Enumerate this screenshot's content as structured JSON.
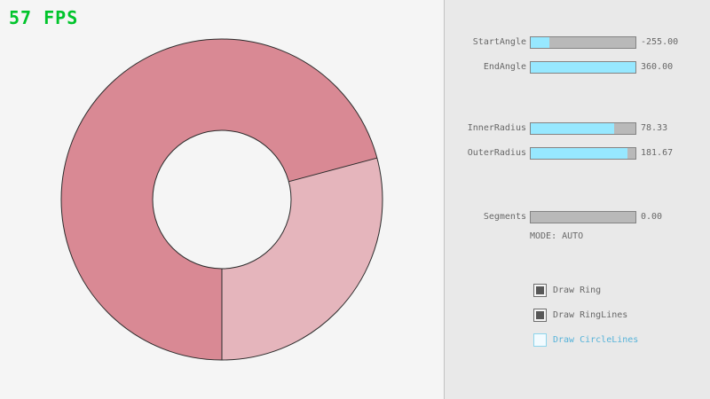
{
  "fps": {
    "text": "57 FPS",
    "color": "#00c42b"
  },
  "ring": {
    "body_color": "#d98994",
    "sector_color": "#e5b5bc",
    "outline_color": "#2b2b2b"
  },
  "controls": {
    "sliders": [
      {
        "label": "StartAngle",
        "value": "-255.00",
        "fill_pct": 18
      },
      {
        "label": "EndAngle",
        "value": "360.00",
        "fill_pct": 100
      },
      {
        "label": "InnerRadius",
        "value": "78.33",
        "fill_pct": 80
      },
      {
        "label": "OuterRadius",
        "value": "181.67",
        "fill_pct": 92
      },
      {
        "label": "Segments",
        "value": "0.00",
        "fill_pct": 0
      }
    ],
    "mode_text": "MODE: AUTO",
    "checkboxes": [
      {
        "label": "Draw Ring",
        "checked": true
      },
      {
        "label": "Draw RingLines",
        "checked": true
      },
      {
        "label": "Draw CircleLines",
        "checked": false
      }
    ],
    "colors": {
      "accent_fill": "#97e8ff",
      "track": "#b9b9b9",
      "border": "#838383",
      "text": "#686868",
      "focused": "#57b3d9"
    }
  }
}
